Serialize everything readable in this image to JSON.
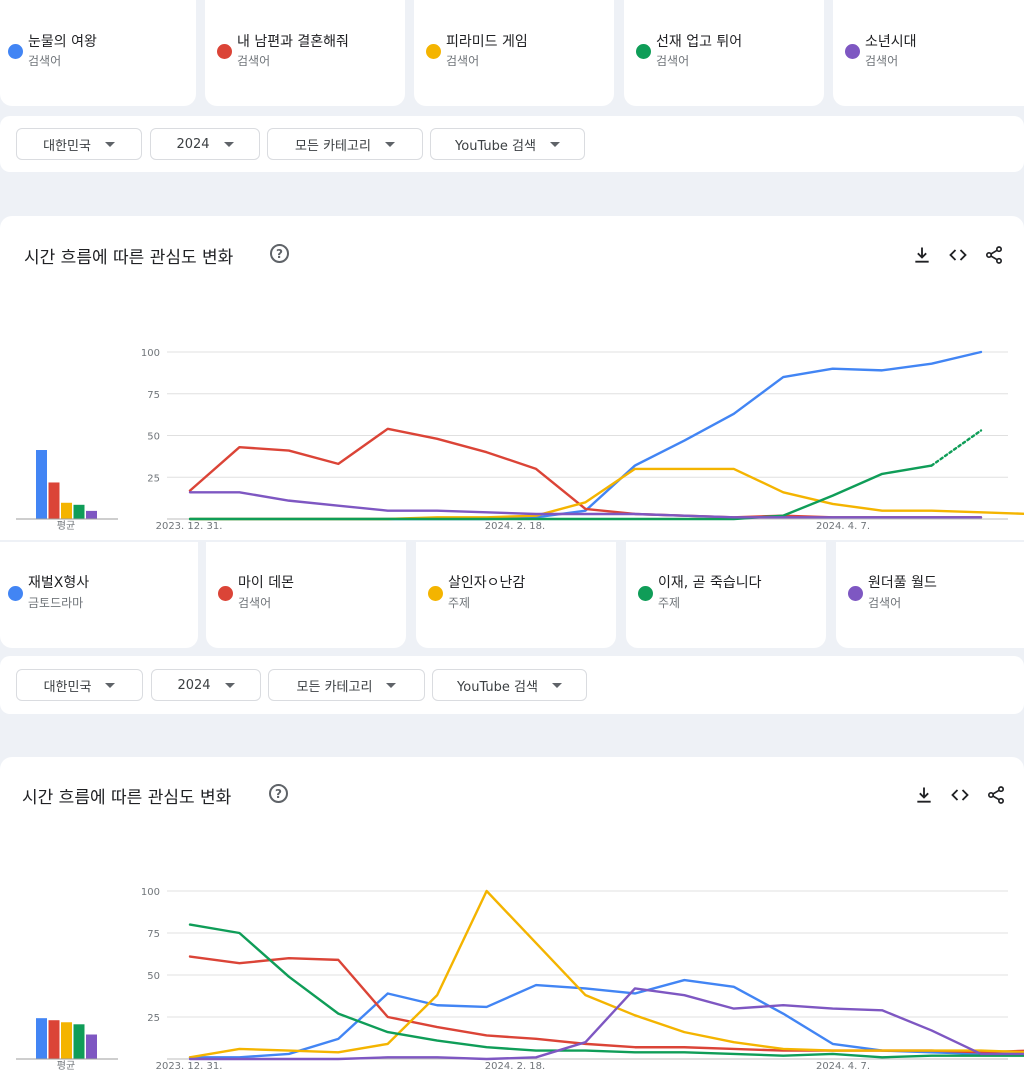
{
  "sections": [
    {
      "terms": [
        {
          "label": "눈물의 여왕",
          "sub": "검색어",
          "color": "#4285f4"
        },
        {
          "label": "내 남편과 결혼해줘",
          "sub": "검색어",
          "color": "#db4437"
        },
        {
          "label": "피라미드 게임",
          "sub": "검색어",
          "color": "#f4b400"
        },
        {
          "label": "선재 업고 튀어",
          "sub": "검색어",
          "color": "#0f9d58"
        },
        {
          "label": "소년시대",
          "sub": "검색어",
          "color": "#7e57c2"
        }
      ],
      "filters": [
        {
          "label": "대한민국"
        },
        {
          "label": "2024"
        },
        {
          "label": "모든 카테고리"
        },
        {
          "label": "YouTube 검색"
        }
      ],
      "panel_title": "시간 흐름에 따른 관심도 변화",
      "help_glyph": "?",
      "tools": [
        "download-icon",
        "embed-code-icon",
        "share-icon"
      ],
      "chart_data": {
        "type": "line",
        "x": [
          "2023. 12. 31.",
          "2024. 1. 7.",
          "2024. 1. 14.",
          "2024. 1. 21.",
          "2024. 1. 28.",
          "2024. 2. 4.",
          "2024. 2. 11.",
          "2024. 2. 18.",
          "2024. 2. 25.",
          "2024. 3. 3.",
          "2024. 3. 10.",
          "2024. 3. 17.",
          "2024. 3. 24.",
          "2024. 3. 31.",
          "2024. 4. 7.",
          "2024. 4. 14.",
          "2024. 4. 21.",
          "2024. 4. 28."
        ],
        "xticks": [
          "2023. 12. 31.",
          "2024. 2. 18.",
          "2024. 4. 7."
        ],
        "yticks": [
          "100",
          "75",
          "50",
          "25"
        ],
        "ylim": [
          0,
          100
        ],
        "grid": true,
        "averages_label": "평균",
        "averages": [
          34,
          18,
          8,
          7,
          4
        ],
        "series": [
          {
            "name": "눈물의 여왕",
            "color": "#4285f4",
            "values": [
              0,
              0,
              0,
              0,
              0,
              0,
              0,
              1,
              5,
              32,
              47,
              63,
              85,
              90,
              89,
              93,
              100,
              null
            ]
          },
          {
            "name": "내 남편과 결혼해줘",
            "color": "#db4437",
            "values": [
              17,
              43,
              41,
              33,
              54,
              48,
              40,
              30,
              6,
              3,
              2,
              1,
              2,
              1,
              1,
              1,
              1,
              null
            ]
          },
          {
            "name": "피라미드 게임",
            "color": "#f4b400",
            "values": [
              0,
              0,
              0,
              0,
              0,
              1,
              1,
              2,
              10,
              30,
              30,
              30,
              16,
              9,
              5,
              5,
              4,
              3
            ]
          },
          {
            "name": "선재 업고 튀어",
            "color": "#0f9d58",
            "values": [
              0,
              0,
              0,
              0,
              0,
              0,
              0,
              0,
              0,
              0,
              0,
              0,
              2,
              14,
              27,
              32,
              53,
              null
            ],
            "dashed_from_index": 15
          },
          {
            "name": "소년시대",
            "color": "#7e57c2",
            "values": [
              16,
              16,
              11,
              8,
              5,
              5,
              4,
              3,
              3,
              3,
              2,
              1,
              1,
              1,
              1,
              1,
              1,
              null
            ]
          }
        ]
      }
    },
    {
      "terms": [
        {
          "label": "재벌X형사",
          "sub": "금토드라마",
          "color": "#4285f4"
        },
        {
          "label": "마이 데몬",
          "sub": "검색어",
          "color": "#db4437"
        },
        {
          "label": "살인자ㅇ난감",
          "sub": "주제",
          "color": "#f4b400"
        },
        {
          "label": "이재, 곧 죽습니다",
          "sub": "주제",
          "color": "#0f9d58"
        },
        {
          "label": "원더풀 월드",
          "sub": "검색어",
          "color": "#7e57c2"
        }
      ],
      "filters": [
        {
          "label": "대한민국"
        },
        {
          "label": "2024"
        },
        {
          "label": "모든 카테고리"
        },
        {
          "label": "YouTube 검색"
        }
      ],
      "panel_title": "시간 흐름에 따른 관심도 변화",
      "help_glyph": "?",
      "tools": [
        "download-icon",
        "embed-code-icon",
        "share-icon"
      ],
      "chart_data": {
        "type": "line",
        "x": [
          "2023. 12. 31.",
          "2024. 1. 7.",
          "2024. 1. 14.",
          "2024. 1. 21.",
          "2024. 1. 28.",
          "2024. 2. 4.",
          "2024. 2. 11.",
          "2024. 2. 18.",
          "2024. 2. 25.",
          "2024. 3. 3.",
          "2024. 3. 10.",
          "2024. 3. 17.",
          "2024. 3. 24.",
          "2024. 3. 31.",
          "2024. 4. 7.",
          "2024. 4. 14.",
          "2024. 4. 21.",
          "2024. 4. 28."
        ],
        "xticks": [
          "2023. 12. 31.",
          "2024. 2. 18.",
          "2024. 4. 7."
        ],
        "yticks": [
          "100",
          "75",
          "50",
          "25"
        ],
        "ylim": [
          0,
          100
        ],
        "grid": true,
        "averages_label": "평균",
        "averages": [
          20,
          19,
          18,
          17,
          12
        ],
        "series": [
          {
            "name": "재벌X형사",
            "color": "#4285f4",
            "values": [
              1,
              1,
              3,
              12,
              39,
              32,
              31,
              44,
              42,
              39,
              47,
              43,
              27,
              9,
              5,
              4,
              3,
              3
            ]
          },
          {
            "name": "마이 데몬",
            "color": "#db4437",
            "values": [
              61,
              57,
              60,
              59,
              25,
              19,
              14,
              12,
              9,
              7,
              7,
              6,
              5,
              5,
              5,
              5,
              4,
              5
            ]
          },
          {
            "name": "살인자ㅇ난감",
            "color": "#f4b400",
            "values": [
              1,
              6,
              5,
              4,
              9,
              38,
              100,
              69,
              38,
              26,
              16,
              10,
              6,
              5,
              5,
              5,
              5,
              4
            ]
          },
          {
            "name": "이재, 곧 죽습니다",
            "color": "#0f9d58",
            "values": [
              80,
              75,
              49,
              27,
              16,
              11,
              7,
              5,
              5,
              4,
              4,
              3,
              2,
              3,
              1,
              2,
              2,
              2
            ]
          },
          {
            "name": "원더풀 월드",
            "color": "#7e57c2",
            "values": [
              0,
              0,
              0,
              0,
              1,
              1,
              0,
              1,
              10,
              42,
              38,
              30,
              32,
              30,
              29,
              17,
              3,
              3
            ]
          }
        ]
      }
    }
  ]
}
